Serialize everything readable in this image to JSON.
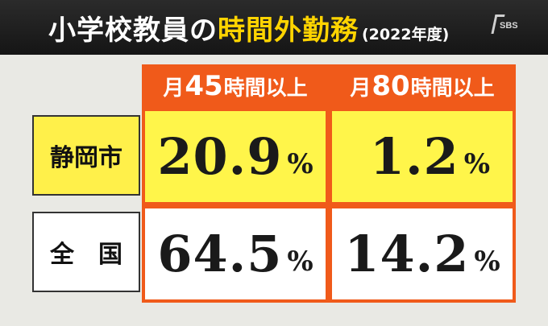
{
  "title": {
    "main": "小学校教員の",
    "highlight": "時間外勤務",
    "year": "(2022年度)"
  },
  "logo": {
    "text": "SBS"
  },
  "columns": [
    {
      "prefix": "月",
      "number": "45",
      "suffix": "時間以上"
    },
    {
      "prefix": "月",
      "number": "80",
      "suffix": "時間以上"
    }
  ],
  "rows": [
    {
      "label": "静岡市",
      "values": [
        "20.9",
        "1.2"
      ]
    },
    {
      "label": "全　国",
      "values": [
        "64.5",
        "14.2"
      ]
    }
  ],
  "unit": "%",
  "colors": {
    "accent_orange": "#f05a1a",
    "highlight_yellow": "#fff54a",
    "title_yellow": "#ffd400"
  }
}
